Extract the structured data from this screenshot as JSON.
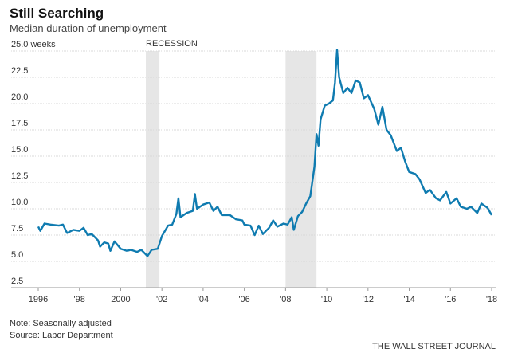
{
  "chart_data": {
    "type": "line",
    "title": "Still Searching",
    "subtitle": "Median duration of unemployment",
    "annotation": "RECESSION",
    "note": "Note: Seasonally adjusted",
    "source": "Source: Labor Department",
    "publisher": "THE WALL STREET JOURNAL",
    "recessions": [
      [
        2001.22,
        2001.88
      ],
      [
        2008.0,
        2009.5
      ]
    ],
    "xlim": [
      1996,
      2018
    ],
    "xticks": [
      1996,
      {
        "value": 1998,
        "label": "'98"
      },
      2000,
      {
        "value": 2002,
        "label": "'02"
      },
      {
        "value": 2004,
        "label": "'04"
      },
      {
        "value": 2006,
        "label": "'06"
      },
      {
        "value": 2008,
        "label": "'08"
      },
      {
        "value": 2010,
        "label": "'10"
      },
      {
        "value": 2012,
        "label": "'12"
      },
      {
        "value": 2014,
        "label": "'14"
      },
      {
        "value": 2016,
        "label": "'16"
      },
      {
        "value": 2018,
        "label": "'18"
      }
    ],
    "ylim": [
      2.5,
      25
    ],
    "yticks": [
      2.5,
      {
        "value": 5,
        "label": "5.0"
      },
      7.5,
      {
        "value": 10,
        "label": "10.0"
      },
      12.5,
      {
        "value": 15,
        "label": "15.0"
      },
      17.5,
      {
        "value": 20,
        "label": "20.0"
      },
      22.5,
      {
        "value": 25,
        "label": "25.0 weeks"
      }
    ],
    "grid": true,
    "series": [
      {
        "name": "Median duration",
        "color": "#0f7bb0",
        "x": [
          1996.0,
          1996.1,
          1996.3,
          1996.6,
          1997.0,
          1997.2,
          1997.4,
          1997.7,
          1998.0,
          1998.2,
          1998.4,
          1998.6,
          1998.9,
          1999.0,
          1999.2,
          1999.4,
          1999.5,
          1999.7,
          2000.0,
          2000.3,
          2000.5,
          2000.8,
          2001.0,
          2001.3,
          2001.5,
          2001.8,
          2002.0,
          2002.3,
          2002.5,
          2002.7,
          2002.8,
          2002.9,
          2003.2,
          2003.5,
          2003.6,
          2003.7,
          2004.0,
          2004.3,
          2004.5,
          2004.7,
          2004.9,
          2005.3,
          2005.6,
          2005.9,
          2006.0,
          2006.3,
          2006.5,
          2006.7,
          2006.9,
          2007.2,
          2007.4,
          2007.6,
          2007.9,
          2008.1,
          2008.3,
          2008.4,
          2008.6,
          2008.8,
          2009.0,
          2009.2,
          2009.4,
          2009.5,
          2009.6,
          2009.7,
          2009.9,
          2010.1,
          2010.3,
          2010.4,
          2010.5,
          2010.6,
          2010.8,
          2011.0,
          2011.2,
          2011.4,
          2011.6,
          2011.8,
          2012.0,
          2012.3,
          2012.5,
          2012.7,
          2012.9,
          2013.1,
          2013.3,
          2013.4,
          2013.6,
          2013.8,
          2014.0,
          2014.3,
          2014.5,
          2014.8,
          2015.0,
          2015.3,
          2015.5,
          2015.8,
          2016.0,
          2016.3,
          2016.5,
          2016.8,
          2017.0,
          2017.3,
          2017.5,
          2017.8,
          2018.0
        ],
        "values": [
          8.3,
          7.9,
          8.6,
          8.5,
          8.4,
          8.5,
          7.7,
          8.0,
          7.9,
          8.2,
          7.5,
          7.6,
          7.0,
          6.4,
          6.8,
          6.7,
          6.0,
          6.9,
          6.2,
          6.0,
          6.1,
          5.9,
          6.1,
          5.5,
          6.1,
          6.2,
          7.4,
          8.4,
          8.5,
          9.5,
          11.0,
          9.2,
          9.6,
          9.8,
          11.4,
          10.0,
          10.4,
          10.6,
          9.8,
          10.2,
          9.4,
          9.4,
          9.0,
          8.9,
          8.5,
          8.4,
          7.5,
          8.4,
          7.6,
          8.2,
          8.9,
          8.3,
          8.6,
          8.5,
          9.2,
          8.0,
          9.3,
          9.7,
          10.5,
          11.2,
          14.0,
          17.1,
          16.0,
          18.5,
          19.8,
          20.0,
          20.3,
          22.0,
          25.1,
          22.5,
          21.0,
          21.5,
          21.0,
          22.2,
          22.0,
          20.5,
          20.8,
          19.5,
          18.0,
          19.7,
          17.5,
          17.0,
          16.0,
          15.5,
          15.8,
          14.5,
          13.5,
          13.3,
          12.8,
          11.5,
          11.8,
          11.0,
          10.8,
          11.6,
          10.5,
          11.0,
          10.2,
          10.0,
          10.2,
          9.6,
          10.5,
          10.1,
          9.4
        ]
      }
    ]
  }
}
